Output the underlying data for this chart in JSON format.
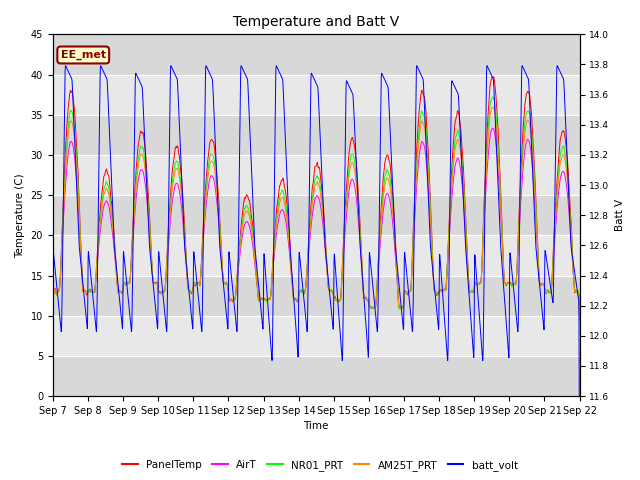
{
  "title": "Temperature and Batt V",
  "xlabel": "Time",
  "ylabel_left": "Temperature (C)",
  "ylabel_right": "Batt V",
  "ylim_left": [
    0,
    45
  ],
  "ylim_right": [
    11.6,
    14.0
  ],
  "annotation": "EE_met",
  "background_color": "#ffffff",
  "plot_bg_color": "#e8e8e8",
  "band_colors": [
    "#d8d8d8",
    "#e8e8e8"
  ],
  "grid_color": "#ffffff",
  "xtick_labels": [
    "Sep 7",
    "Sep 8",
    "Sep 9",
    "Sep 10",
    "Sep 11",
    "Sep 12",
    "Sep 13",
    "Sep 14",
    "Sep 15",
    "Sep 16",
    "Sep 17",
    "Sep 18",
    "Sep 19",
    "Sep 20",
    "Sep 21",
    "Sep 22"
  ],
  "colors": {
    "PanelTemp": "#ff0000",
    "AirT": "#ff00ff",
    "NR01_PRT": "#00ff00",
    "AM25T_PRT": "#ff8800",
    "batt_volt": "#0000ff"
  },
  "legend_labels": [
    "PanelTemp",
    "AirT",
    "NR01_PRT",
    "AM25T_PRT",
    "batt_volt"
  ],
  "num_days": 15,
  "points_per_day": 288,
  "day_peak_temps": [
    38,
    28,
    33,
    31,
    32,
    25,
    27,
    29,
    32,
    30,
    38,
    35,
    40,
    38,
    33
  ],
  "night_min_temps": [
    13,
    13,
    14,
    13,
    14,
    12,
    12,
    13,
    12,
    11,
    13,
    13,
    14,
    14,
    13
  ],
  "batt_day_peaks": [
    13.8,
    13.8,
    13.75,
    13.8,
    13.8,
    13.8,
    13.8,
    13.75,
    13.7,
    13.75,
    13.8,
    13.7,
    13.8,
    13.8,
    13.8
  ],
  "batt_night_mins": [
    12.0,
    12.0,
    12.0,
    12.0,
    12.0,
    12.0,
    11.8,
    12.0,
    11.8,
    12.0,
    12.0,
    11.8,
    11.8,
    12.0,
    12.2
  ]
}
